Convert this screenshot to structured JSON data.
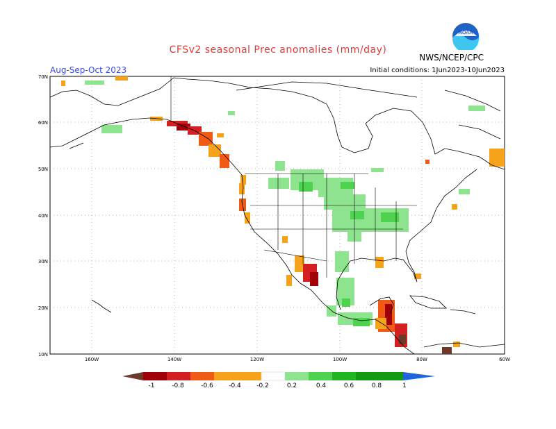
{
  "title": "CFSv2 seasonal Prec anomalies (mm/day)",
  "season": "Aug-Sep-Oct 2023",
  "initial_conditions": "Initial conditions: 1Jun2023-10Jun2023",
  "agency": "NWS/NCEP/CPC",
  "logo_text": "NOAA",
  "lat_labels": [
    "70N",
    "60N",
    "50N",
    "40N",
    "30N",
    "20N",
    "10N"
  ],
  "lon_labels": [
    "160W",
    "140W",
    "120W",
    "100W",
    "80W",
    "60W"
  ],
  "colorbar": {
    "ticks": [
      "-1",
      "-0.8",
      "-0.6",
      "-0.4",
      "-0.2",
      "0.2",
      "0.4",
      "0.6",
      "0.8",
      "1"
    ],
    "colors": [
      "#6b3a2a",
      "#a0000a",
      "#d42020",
      "#f05a14",
      "#f7a21b",
      "#ffffff",
      "#8ee48e",
      "#4fd24f",
      "#22b522",
      "#139a13",
      "#1e64dc"
    ]
  }
}
